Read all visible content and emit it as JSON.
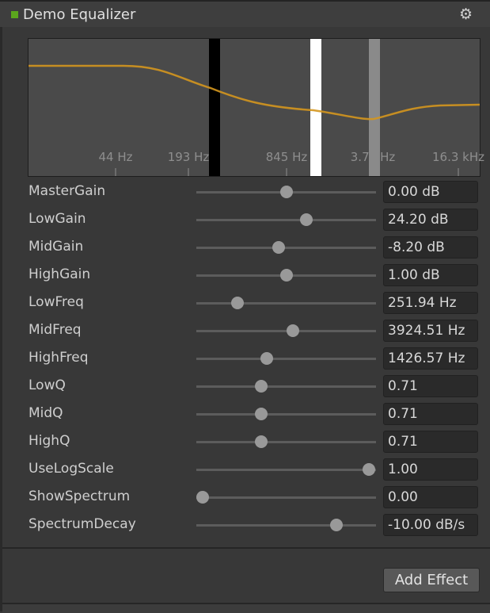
{
  "header": {
    "title": "Demo Equalizer",
    "status_color": "#5ba61d",
    "settings_icon": "gear-icon"
  },
  "graph": {
    "curve_color": "#d4961e",
    "freq_labels": [
      "44 Hz",
      "193 Hz",
      "845 Hz",
      "3.7 kHz",
      "16.3 kHz"
    ],
    "band_markers": [
      {
        "name": "low",
        "color": "#000000"
      },
      {
        "name": "high",
        "color": "#ffffff"
      },
      {
        "name": "mid",
        "color": "#8a8a8a"
      }
    ]
  },
  "params": [
    {
      "label": "MasterGain",
      "value": "0.00 dB",
      "level": 0.505
    },
    {
      "label": "LowGain",
      "value": "24.20 dB",
      "level": 0.624
    },
    {
      "label": "MidGain",
      "value": "-8.20 dB",
      "level": 0.457
    },
    {
      "label": "HighGain",
      "value": "1.00 dB",
      "level": 0.505
    },
    {
      "label": "LowFreq",
      "value": "251.94 Hz",
      "level": 0.21
    },
    {
      "label": "MidFreq",
      "value": "3924.51 Hz",
      "level": 0.543
    },
    {
      "label": "HighFreq",
      "value": "1426.57 Hz",
      "level": 0.386
    },
    {
      "label": "LowQ",
      "value": "0.71",
      "level": 0.352
    },
    {
      "label": "MidQ",
      "value": "0.71",
      "level": 0.352
    },
    {
      "label": "HighQ",
      "value": "0.71",
      "level": 0.352
    },
    {
      "label": "UseLogScale",
      "value": "1.00",
      "level": 1.0
    },
    {
      "label": "ShowSpectrum",
      "value": "0.00",
      "level": 0.0
    },
    {
      "label": "SpectrumDecay",
      "value": "-10.00 dB/s",
      "level": 0.805
    }
  ],
  "footer": {
    "add_effect_label": "Add Effect"
  }
}
